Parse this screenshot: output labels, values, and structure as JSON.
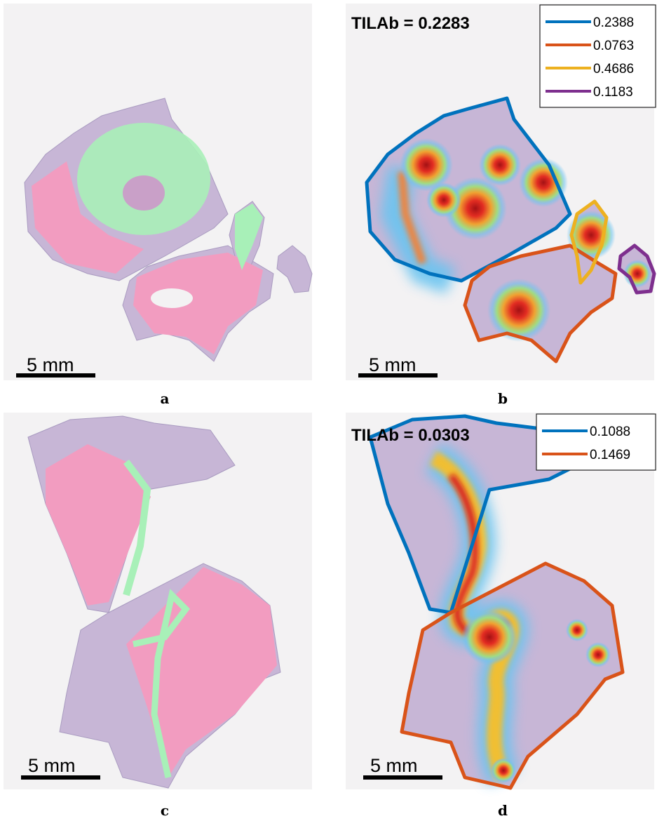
{
  "panels": [
    {
      "caption": "a",
      "scale_bar": "5 mm"
    },
    {
      "caption": "b",
      "scale_bar": "5 mm",
      "title": "TILAb = 0.2283",
      "legend": [
        {
          "label": "0.2388",
          "color": "#0072bd"
        },
        {
          "label": "0.0763",
          "color": "#d95319"
        },
        {
          "label": "0.4686",
          "color": "#edb120"
        },
        {
          "label": "0.1183",
          "color": "#7e2f8e"
        }
      ]
    },
    {
      "caption": "c",
      "scale_bar": "5 mm"
    },
    {
      "caption": "d",
      "scale_bar": "5 mm",
      "title": "TILAb = 0.0303",
      "legend": [
        {
          "label": "0.1088",
          "color": "#0072bd"
        },
        {
          "label": "0.1469",
          "color": "#d95319"
        }
      ]
    }
  ]
}
